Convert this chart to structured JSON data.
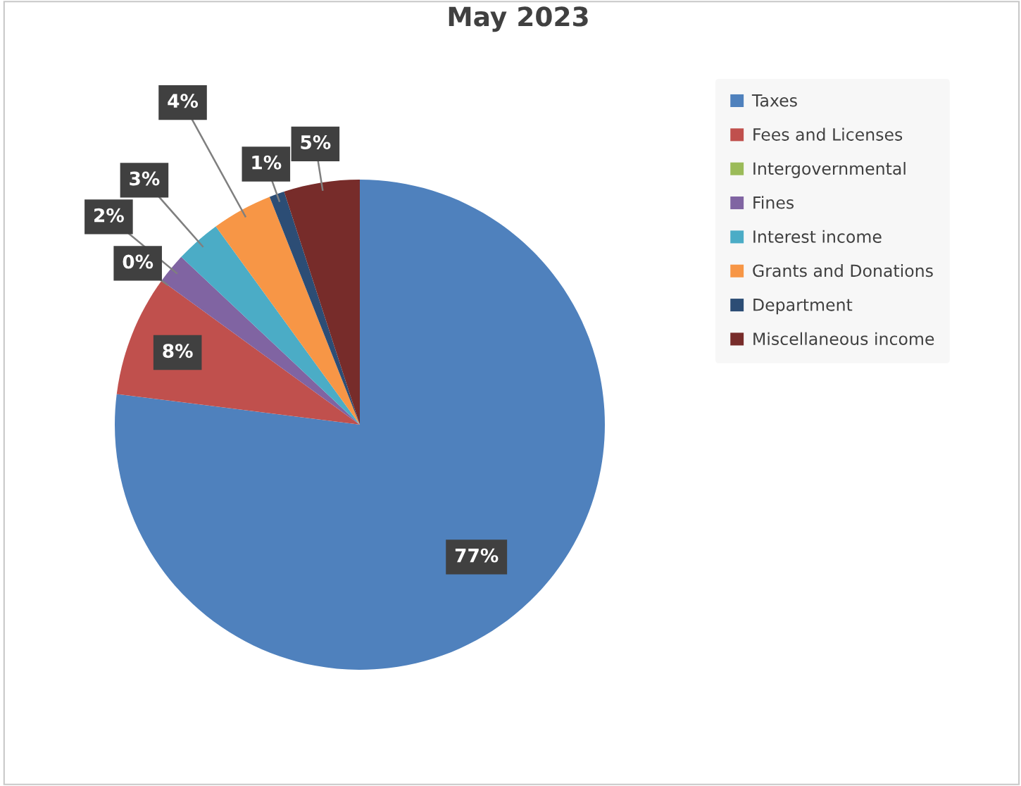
{
  "chart_data": {
    "type": "pie",
    "title": "May 2023",
    "categories": [
      "Taxes",
      "Fees and Licenses",
      "Intergovernmental",
      "Fines",
      "Interest income",
      "Grants and Donations",
      "Department",
      "Miscellaneous income"
    ],
    "values": [
      77,
      8,
      0,
      2,
      3,
      4,
      1,
      5
    ],
    "colors": [
      "#4f81bd",
      "#c0504d",
      "#9bbb59",
      "#8064a2",
      "#4bacc6",
      "#f79646",
      "#2c4d75",
      "#772c2a"
    ],
    "value_labels": [
      "77%",
      "8%",
      "0%",
      "2%",
      "3%",
      "4%",
      "1%",
      "5%"
    ],
    "legend": "right"
  }
}
